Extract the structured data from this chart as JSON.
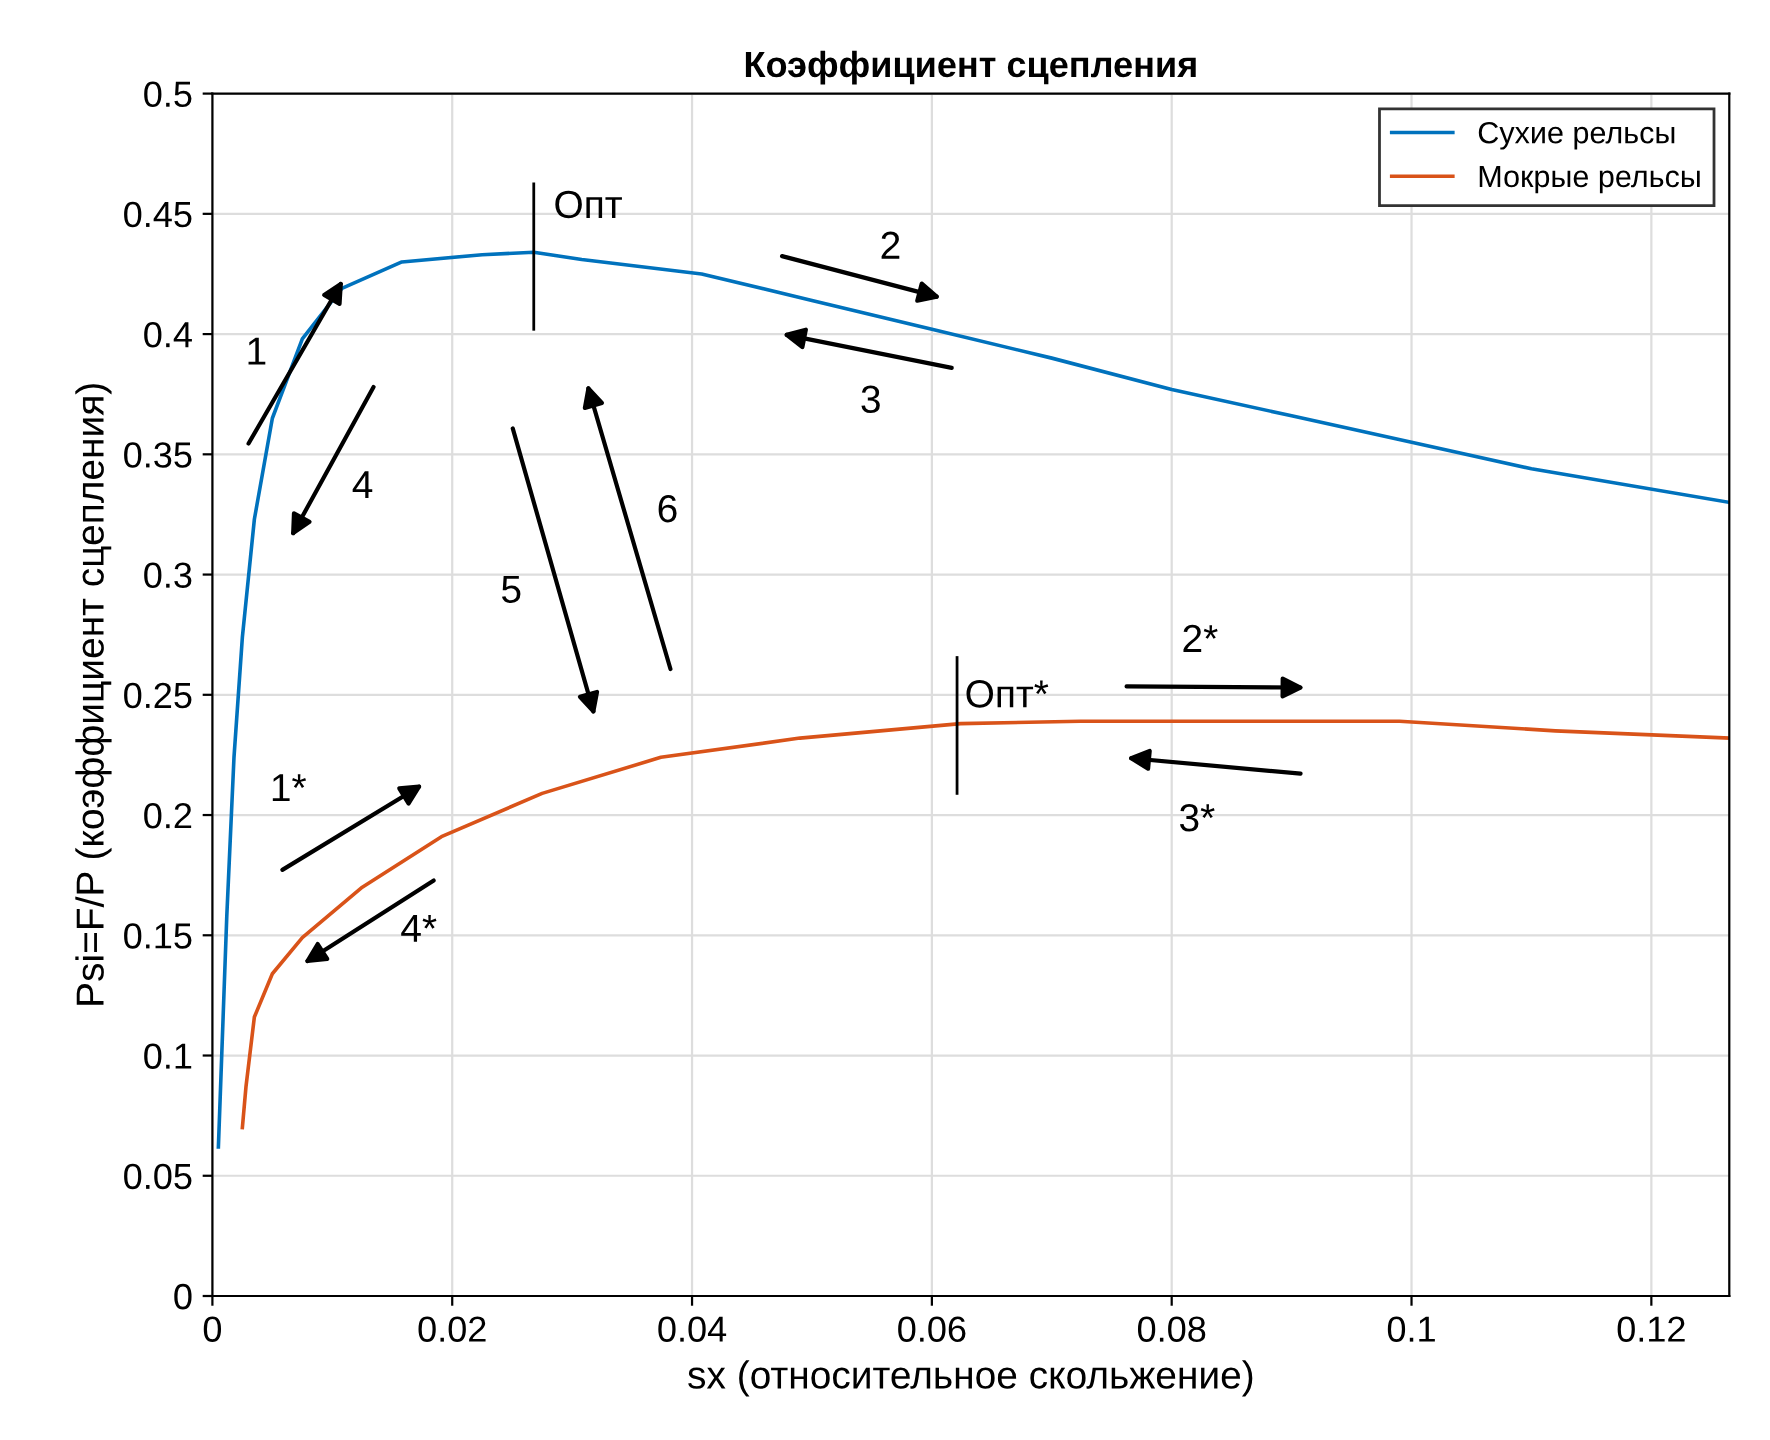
{
  "chart_data": {
    "type": "line",
    "title": "Коэффициент сцепления",
    "xlabel": "sx (относительное скольжение)",
    "ylabel": "Psi=F/P (коэффициент сцепления)",
    "xlim": [
      0,
      0.1265
    ],
    "ylim": [
      0,
      0.5
    ],
    "xticks": [
      0,
      0.02,
      0.04,
      0.06,
      0.08,
      0.1,
      0.12
    ],
    "yticks": [
      0,
      0.05,
      0.1,
      0.15,
      0.2,
      0.25,
      0.3,
      0.35,
      0.4,
      0.45,
      0.5
    ],
    "grid": true,
    "legend": "top right",
    "marker": "none",
    "line_style": "solid",
    "series": [
      {
        "name": "Сухие рельсы",
        "color": "#0072bd",
        "x": [
          0.0005,
          0.0012,
          0.0018,
          0.0025,
          0.0035,
          0.005,
          0.0075,
          0.0108,
          0.0158,
          0.0225,
          0.0268,
          0.0308,
          0.0408,
          0.05,
          0.06,
          0.07,
          0.08,
          0.09,
          0.1,
          0.11,
          0.1265
        ],
        "values": [
          0.062,
          0.158,
          0.224,
          0.274,
          0.323,
          0.365,
          0.398,
          0.419,
          0.43,
          0.433,
          0.434,
          0.431,
          0.425,
          0.414,
          0.402,
          0.39,
          0.377,
          0.366,
          0.355,
          0.344,
          0.33
        ]
      },
      {
        "name": "Мокрые рельсы",
        "color": "#d95319",
        "x": [
          0.0025,
          0.0028,
          0.0035,
          0.005,
          0.0075,
          0.0125,
          0.0191,
          0.0275,
          0.0374,
          0.049,
          0.0624,
          0.0724,
          0.0824,
          0.099,
          0.112,
          0.1265
        ],
        "values": [
          0.07,
          0.087,
          0.116,
          0.134,
          0.149,
          0.17,
          0.191,
          0.209,
          0.224,
          0.232,
          0.238,
          0.239,
          0.239,
          0.239,
          0.235,
          0.232
        ]
      }
    ],
    "ref_lines": [
      {
        "axis": "x",
        "value": 0.0268,
        "label": "Опт"
      },
      {
        "axis": "x",
        "value": 0.0621,
        "label": "Опт*"
      }
    ],
    "annotations": [
      "1",
      "4",
      "2",
      "3",
      "5",
      "6",
      "1*",
      "4*",
      "2*",
      "3*"
    ]
  }
}
